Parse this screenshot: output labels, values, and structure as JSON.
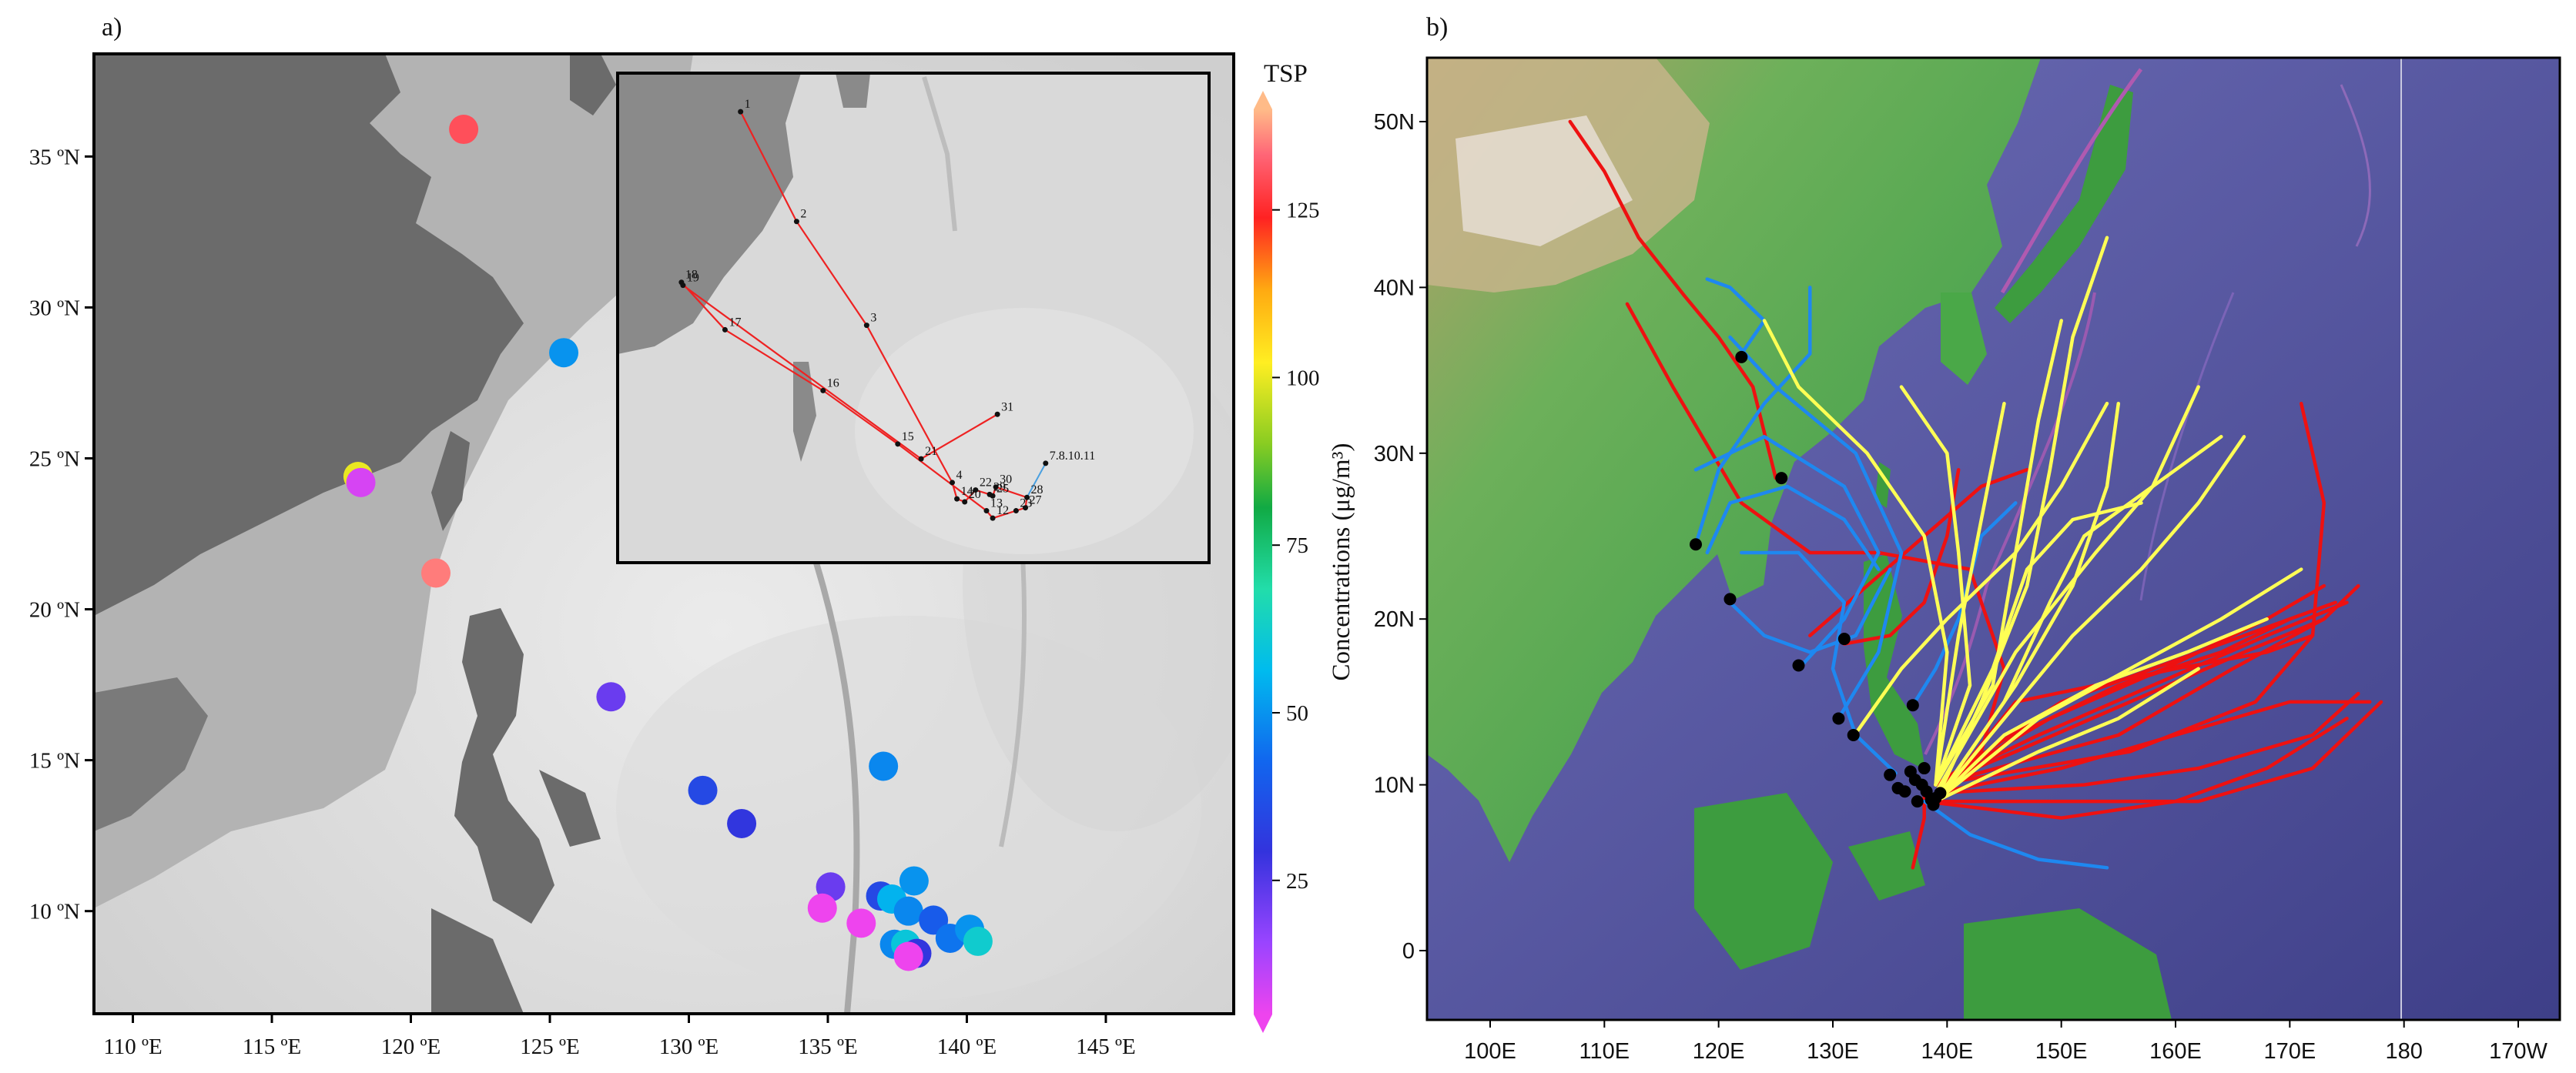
{
  "panel_a": {
    "label": "a)",
    "x_ticks": [
      "110 ºE",
      "115 ºE",
      "120 ºE",
      "125 ºE",
      "130 ºE",
      "135 ºE",
      "140 ºE",
      "145 ºE"
    ],
    "y_ticks": [
      "35 ºN",
      "30 ºN",
      "25 ºN",
      "20 ºN",
      "15 ºN",
      "10 ºN"
    ],
    "colorbar": {
      "title": "TSP",
      "label": "Concentrations (μg/m³)",
      "ticks": [
        "125",
        "100",
        "75",
        "50",
        "25"
      ],
      "min": 5,
      "max": 140
    },
    "samples": [
      {
        "lon": 121.9,
        "lat": 35.9,
        "tsp": 130
      },
      {
        "lon": 125.5,
        "lat": 28.5,
        "tsp": 50
      },
      {
        "lon": 118.1,
        "lat": 24.4,
        "tsp": 100
      },
      {
        "lon": 118.2,
        "lat": 24.2,
        "tsp": 8
      },
      {
        "lon": 120.9,
        "lat": 21.2,
        "tsp": 135
      },
      {
        "lon": 127.2,
        "lat": 17.1,
        "tsp": 22
      },
      {
        "lon": 130.5,
        "lat": 14.0,
        "tsp": 35
      },
      {
        "lon": 131.9,
        "lat": 12.9,
        "tsp": 30
      },
      {
        "lon": 137.0,
        "lat": 14.8,
        "tsp": 48
      },
      {
        "lon": 135.1,
        "lat": 10.8,
        "tsp": 22
      },
      {
        "lon": 134.8,
        "lat": 10.1,
        "tsp": 4
      },
      {
        "lon": 136.2,
        "lat": 9.6,
        "tsp": 3
      },
      {
        "lon": 136.9,
        "lat": 10.5,
        "tsp": 35
      },
      {
        "lon": 137.3,
        "lat": 10.4,
        "tsp": 55
      },
      {
        "lon": 137.9,
        "lat": 10.0,
        "tsp": 48
      },
      {
        "lon": 138.1,
        "lat": 11.0,
        "tsp": 50
      },
      {
        "lon": 137.4,
        "lat": 8.9,
        "tsp": 48
      },
      {
        "lon": 137.8,
        "lat": 8.9,
        "tsp": 60
      },
      {
        "lon": 138.2,
        "lat": 8.6,
        "tsp": 30
      },
      {
        "lon": 137.9,
        "lat": 8.5,
        "tsp": 3
      },
      {
        "lon": 138.8,
        "lat": 9.7,
        "tsp": 40
      },
      {
        "lon": 139.4,
        "lat": 9.1,
        "tsp": 45
      },
      {
        "lon": 140.1,
        "lat": 9.4,
        "tsp": 50
      },
      {
        "lon": 140.4,
        "lat": 9.0,
        "tsp": 62
      }
    ],
    "inset": {
      "stations": [
        {
          "n": "1",
          "lon": 121.9,
          "lat": 35.9
        },
        {
          "n": "2",
          "lon": 125.5,
          "lat": 28.5
        },
        {
          "n": "3",
          "lon": 130.0,
          "lat": 21.5
        },
        {
          "n": "16",
          "lon": 127.2,
          "lat": 17.1
        },
        {
          "n": "18",
          "lon": 118.1,
          "lat": 24.4
        },
        {
          "n": "19",
          "lon": 118.2,
          "lat": 24.2
        },
        {
          "n": "17",
          "lon": 120.9,
          "lat": 21.2
        },
        {
          "n": "15",
          "lon": 132.0,
          "lat": 13.5
        },
        {
          "n": "21",
          "lon": 133.5,
          "lat": 12.5
        },
        {
          "n": "31",
          "lon": 138.4,
          "lat": 15.5
        },
        {
          "n": "4",
          "lon": 135.5,
          "lat": 10.9
        },
        {
          "n": "14",
          "lon": 135.8,
          "lat": 9.8
        },
        {
          "n": "20",
          "lon": 136.3,
          "lat": 9.6
        },
        {
          "n": "22",
          "lon": 137.0,
          "lat": 10.4
        },
        {
          "n": "30",
          "lon": 138.3,
          "lat": 10.6
        },
        {
          "n": "29",
          "lon": 137.9,
          "lat": 10.1
        },
        {
          "n": "25",
          "lon": 138.1,
          "lat": 10.0
        },
        {
          "n": "28",
          "lon": 140.3,
          "lat": 9.9
        },
        {
          "n": "27",
          "lon": 140.2,
          "lat": 9.2
        },
        {
          "n": "23",
          "lon": 139.6,
          "lat": 9.0
        },
        {
          "n": "13",
          "lon": 137.7,
          "lat": 9.0
        },
        {
          "n": "12",
          "lon": 138.1,
          "lat": 8.5
        },
        {
          "n": "7.8.10.11",
          "lon": 141.5,
          "lat": 12.2
        }
      ],
      "route": [
        "1",
        "2",
        "3",
        "4",
        "14",
        "20",
        "22",
        "29",
        "25",
        "30",
        "28",
        "27",
        "23",
        "12",
        "13",
        "15",
        "16",
        "17",
        "18",
        "19",
        "21",
        "31"
      ]
    }
  },
  "panel_b": {
    "label": "b)",
    "x_ticks": [
      "100E",
      "110E",
      "120E",
      "130E",
      "140E",
      "150E",
      "160E",
      "170E",
      "180",
      "170W"
    ],
    "y_ticks": [
      "50N",
      "40N",
      "30N",
      "20N",
      "10N",
      "0"
    ],
    "trajectories": {
      "red": [
        [
          [
            139,
            10
          ],
          [
            146,
            12
          ],
          [
            156,
            15
          ],
          [
            166,
            18
          ],
          [
            173,
            20
          ]
        ],
        [
          [
            139,
            10
          ],
          [
            148,
            13
          ],
          [
            158,
            16
          ],
          [
            168,
            19
          ],
          [
            175,
            21
          ]
        ],
        [
          [
            139,
            9.5
          ],
          [
            150,
            11
          ],
          [
            160,
            13
          ],
          [
            170,
            15
          ],
          [
            177,
            15
          ]
        ],
        [
          [
            139,
            9.5
          ],
          [
            152,
            10
          ],
          [
            162,
            11
          ],
          [
            172,
            13
          ],
          [
            176,
            15.5
          ]
        ],
        [
          [
            139,
            10
          ],
          [
            149,
            14
          ],
          [
            159,
            17
          ],
          [
            168,
            20
          ],
          [
            173,
            22
          ]
        ],
        [
          [
            139,
            9
          ],
          [
            151,
            9
          ],
          [
            162,
            9
          ],
          [
            172,
            11
          ],
          [
            178,
            15
          ]
        ],
        [
          [
            139,
            9
          ],
          [
            146,
            13
          ],
          [
            155,
            16
          ],
          [
            164,
            18
          ],
          [
            170,
            20
          ]
        ],
        [
          [
            138,
            9
          ],
          [
            150,
            8
          ],
          [
            160,
            9
          ],
          [
            168,
            11
          ],
          [
            175,
            14
          ]
        ],
        [
          [
            139,
            10
          ],
          [
            155,
            13
          ],
          [
            165,
            17
          ],
          [
            173,
            20
          ],
          [
            176,
            22
          ]
        ],
        [
          [
            139,
            10
          ],
          [
            150,
            15
          ],
          [
            162,
            18
          ],
          [
            170,
            20
          ],
          [
            174,
            21
          ]
        ],
        [
          [
            139,
            10
          ],
          [
            156,
            12
          ],
          [
            167,
            15
          ],
          [
            172,
            19
          ],
          [
            173,
            27
          ],
          [
            171,
            33
          ]
        ],
        [
          [
            139,
            9
          ],
          [
            146,
            15
          ],
          [
            160,
            17
          ],
          [
            168,
            18
          ],
          [
            172,
            19
          ]
        ],
        [
          [
            139,
            9
          ],
          [
            143,
            12
          ],
          [
            145,
            17
          ],
          [
            142,
            23
          ],
          [
            134,
            24
          ],
          [
            128,
            24
          ],
          [
            122,
            27
          ],
          [
            116,
            34
          ],
          [
            112,
            39
          ]
        ],
        [
          [
            131,
            18.5
          ],
          [
            135,
            19
          ],
          [
            138,
            21
          ],
          [
            140,
            25
          ],
          [
            141,
            29
          ]
        ],
        [
          [
            138,
            10
          ],
          [
            138,
            8
          ],
          [
            137,
            5
          ]
        ],
        [
          [
            125,
            28.5
          ],
          [
            123,
            34
          ],
          [
            120,
            37
          ],
          [
            117,
            39.5
          ],
          [
            113,
            43
          ],
          [
            110,
            47
          ],
          [
            107,
            50
          ]
        ],
        [
          [
            128,
            19
          ],
          [
            133,
            22
          ],
          [
            138,
            25
          ],
          [
            143,
            28
          ],
          [
            147,
            29
          ]
        ]
      ],
      "blue": [
        [
          [
            118,
            24.5
          ],
          [
            120,
            29
          ],
          [
            124,
            33
          ],
          [
            128,
            36
          ],
          [
            128,
            40
          ]
        ],
        [
          [
            121,
            21
          ],
          [
            124,
            19
          ],
          [
            128,
            18
          ],
          [
            132,
            19
          ],
          [
            135,
            23
          ]
        ],
        [
          [
            119,
            24
          ],
          [
            121,
            27
          ],
          [
            126,
            28
          ],
          [
            131,
            26
          ],
          [
            134,
            23
          ]
        ],
        [
          [
            130.5,
            14
          ],
          [
            134,
            18
          ],
          [
            136,
            24
          ],
          [
            132,
            30
          ],
          [
            125,
            34
          ],
          [
            121,
            37
          ]
        ],
        [
          [
            127,
            17
          ],
          [
            131,
            20
          ],
          [
            134,
            24
          ],
          [
            131,
            28
          ],
          [
            124,
            31
          ],
          [
            118,
            29
          ]
        ],
        [
          [
            122,
            36
          ],
          [
            124,
            38
          ],
          [
            121,
            40
          ],
          [
            119,
            40.5
          ]
        ],
        [
          [
            138,
            9
          ],
          [
            142,
            7
          ],
          [
            148,
            5.5
          ],
          [
            154,
            5
          ]
        ],
        [
          [
            135.5,
            10.7
          ],
          [
            132,
            13
          ],
          [
            130,
            17
          ],
          [
            131,
            21
          ],
          [
            127,
            24
          ],
          [
            122,
            24
          ]
        ],
        [
          [
            137,
            14.8
          ],
          [
            139,
            17
          ],
          [
            141,
            20
          ],
          [
            143,
            25
          ],
          [
            146,
            27
          ]
        ]
      ],
      "yellow": [
        [
          [
            131.9,
            13
          ],
          [
            136,
            17
          ],
          [
            140,
            20
          ],
          [
            146,
            24
          ],
          [
            150,
            28
          ],
          [
            154,
            33
          ]
        ],
        [
          [
            139,
            9
          ],
          [
            143,
            15
          ],
          [
            147,
            22
          ],
          [
            149,
            29
          ],
          [
            151,
            37
          ],
          [
            154,
            43
          ]
        ],
        [
          [
            139,
            9
          ],
          [
            145,
            14
          ],
          [
            151,
            19
          ],
          [
            157,
            23
          ],
          [
            162,
            27
          ],
          [
            166,
            31
          ]
        ],
        [
          [
            139,
            9
          ],
          [
            146,
            16
          ],
          [
            151,
            22
          ],
          [
            154,
            28
          ],
          [
            155,
            33
          ]
        ],
        [
          [
            139,
            9
          ],
          [
            148,
            14
          ],
          [
            156,
            17
          ],
          [
            164,
            20
          ],
          [
            171,
            23
          ]
        ],
        [
          [
            139,
            10
          ],
          [
            144,
            16
          ],
          [
            146,
            24
          ],
          [
            148,
            32
          ],
          [
            150,
            38
          ]
        ],
        [
          [
            139,
            10
          ],
          [
            142,
            16
          ],
          [
            141,
            24
          ],
          [
            140,
            30
          ],
          [
            136,
            34
          ]
        ],
        [
          [
            139,
            9.5
          ],
          [
            146,
            18
          ],
          [
            153,
            24
          ],
          [
            158,
            28
          ],
          [
            162,
            34
          ]
        ],
        [
          [
            139,
            10
          ],
          [
            140,
            18
          ],
          [
            138,
            25
          ],
          [
            133,
            30
          ],
          [
            127,
            34
          ],
          [
            124,
            38
          ]
        ],
        [
          [
            139,
            9
          ],
          [
            145,
            13
          ],
          [
            153,
            16
          ],
          [
            161,
            18
          ],
          [
            168,
            20
          ]
        ],
        [
          [
            139,
            9
          ],
          [
            148,
            12
          ],
          [
            155,
            14
          ],
          [
            162,
            17
          ]
        ],
        [
          [
            139,
            10
          ],
          [
            141,
            19
          ],
          [
            143,
            26
          ],
          [
            145,
            33
          ]
        ],
        [
          [
            139,
            10
          ],
          [
            144,
            17
          ],
          [
            147,
            23
          ],
          [
            151,
            26
          ],
          [
            157,
            27
          ]
        ],
        [
          [
            139,
            9
          ],
          [
            145,
            15
          ],
          [
            149,
            21
          ],
          [
            152,
            25
          ],
          [
            158,
            28
          ],
          [
            164,
            31
          ]
        ]
      ]
    },
    "start_points": [
      [
        122,
        35.8
      ],
      [
        125.5,
        28.5
      ],
      [
        118,
        24.5
      ],
      [
        121,
        21.2
      ],
      [
        127,
        17.2
      ],
      [
        130.5,
        14
      ],
      [
        131.8,
        13
      ],
      [
        131,
        18.8
      ],
      [
        137,
        14.8
      ],
      [
        135,
        10.6
      ],
      [
        135.7,
        9.8
      ],
      [
        136.8,
        10.8
      ],
      [
        137.2,
        10.3
      ],
      [
        137.8,
        10.0
      ],
      [
        138.2,
        9.6
      ],
      [
        138.6,
        9.1
      ],
      [
        139.0,
        9.2
      ],
      [
        139.4,
        9.5
      ],
      [
        138.8,
        8.8
      ],
      [
        137.4,
        9.0
      ],
      [
        136.3,
        9.6
      ],
      [
        138,
        11.0
      ]
    ]
  }
}
